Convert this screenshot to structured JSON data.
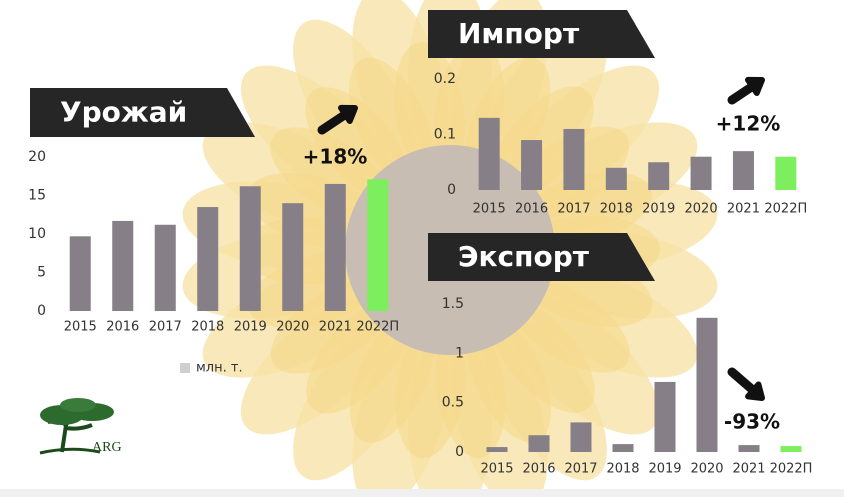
{
  "chart_data": [
    {
      "type": "bar",
      "title": "Урожай",
      "annotation": "+18%",
      "legend": "млн. т.",
      "categories": [
        "2015",
        "2016",
        "2017",
        "2018",
        "2019",
        "2020",
        "2021",
        "2022П"
      ],
      "values": [
        9.7,
        11.7,
        11.2,
        13.5,
        16.2,
        14.0,
        16.5,
        17.1
      ],
      "colors": [
        "#867f87",
        "#867f87",
        "#867f87",
        "#867f87",
        "#867f87",
        "#867f87",
        "#867f87",
        "#7def5f"
      ],
      "ylim": [
        0,
        20
      ],
      "yticks": [
        0,
        5,
        10,
        15,
        20
      ],
      "trend": "up"
    },
    {
      "type": "bar",
      "title": "Импорт",
      "annotation": "+12%",
      "categories": [
        "2015",
        "2016",
        "2017",
        "2018",
        "2019",
        "2020",
        "2021",
        "2022П"
      ],
      "values": [
        0.13,
        0.09,
        0.11,
        0.04,
        0.05,
        0.06,
        0.07,
        0.06
      ],
      "colors": [
        "#867f87",
        "#867f87",
        "#867f87",
        "#867f87",
        "#867f87",
        "#867f87",
        "#867f87",
        "#7def5f"
      ],
      "ylim": [
        0,
        0.2
      ],
      "yticks": [
        0,
        0.1,
        0.2
      ],
      "trend": "up"
    },
    {
      "type": "bar",
      "title": "Экспорт",
      "annotation": "-93%",
      "categories": [
        "2015",
        "2016",
        "2017",
        "2018",
        "2019",
        "2020",
        "2021",
        "2022П"
      ],
      "values": [
        0.05,
        0.17,
        0.3,
        0.08,
        0.71,
        1.36,
        0.07,
        0.06
      ],
      "colors": [
        "#867f87",
        "#867f87",
        "#867f87",
        "#867f87",
        "#867f87",
        "#867f87",
        "#867f87",
        "#7def5f"
      ],
      "ylim": [
        0,
        1.5
      ],
      "yticks": [
        0,
        0.5,
        1,
        1.5
      ],
      "trend": "down"
    }
  ],
  "logo": "ARG"
}
